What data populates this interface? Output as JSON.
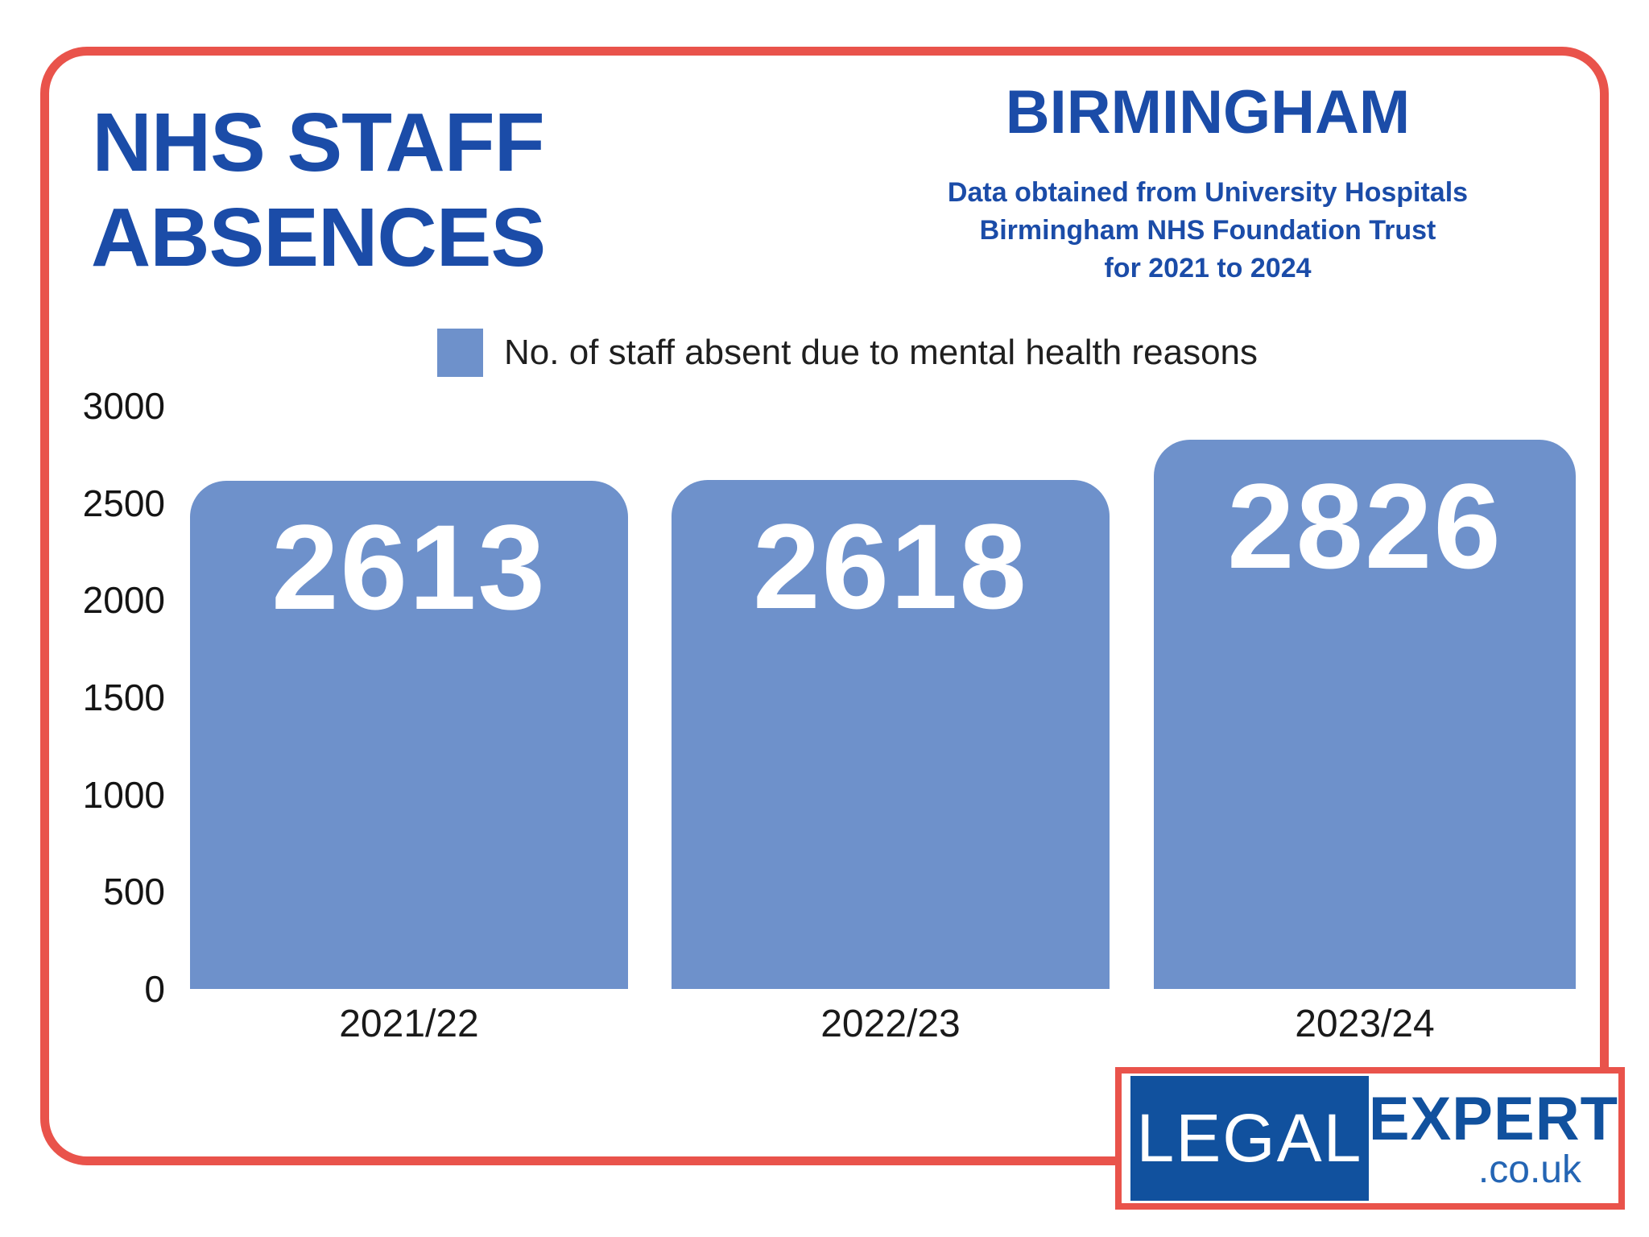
{
  "header": {
    "title_line1": "NHS STAFF",
    "title_line2": "ABSENCES",
    "region": "BIRMINGHAM",
    "source_note": "Data obtained from University Hospitals\nBirmingham NHS Foundation Trust\nfor 2021 to 2024"
  },
  "legend": {
    "label": "No. of staff absent due to mental health reasons",
    "swatch_color": "#6e91cb"
  },
  "chart_data": {
    "type": "bar",
    "title": "NHS STAFF ABSENCES",
    "subtitle_region": "BIRMINGHAM",
    "categories": [
      "2021/22",
      "2022/23",
      "2023/24"
    ],
    "values": [
      2613,
      2618,
      2826
    ],
    "series": [
      {
        "name": "No. of staff absent due to mental health reasons",
        "values": [
          2613,
          2618,
          2826
        ]
      }
    ],
    "xlabel": "",
    "ylabel": "",
    "ylim": [
      0,
      3000
    ],
    "yticks": [
      "3000",
      "2500",
      "2000",
      "1500",
      "1000",
      "500",
      "0"
    ],
    "grid": "off",
    "legend_position": "top",
    "bar_color": "#6e91cb",
    "value_label_color": "#ffffff"
  },
  "colors": {
    "frame_red": "#e9534b",
    "heading_blue": "#1b4ca8",
    "bar_blue": "#6e91cb",
    "logo_blue": "#11519e",
    "text_dark": "#1f1f1f"
  },
  "logo": {
    "word1": "LEGAL",
    "word2": "EXPERT",
    "word3": ".co.uk"
  }
}
